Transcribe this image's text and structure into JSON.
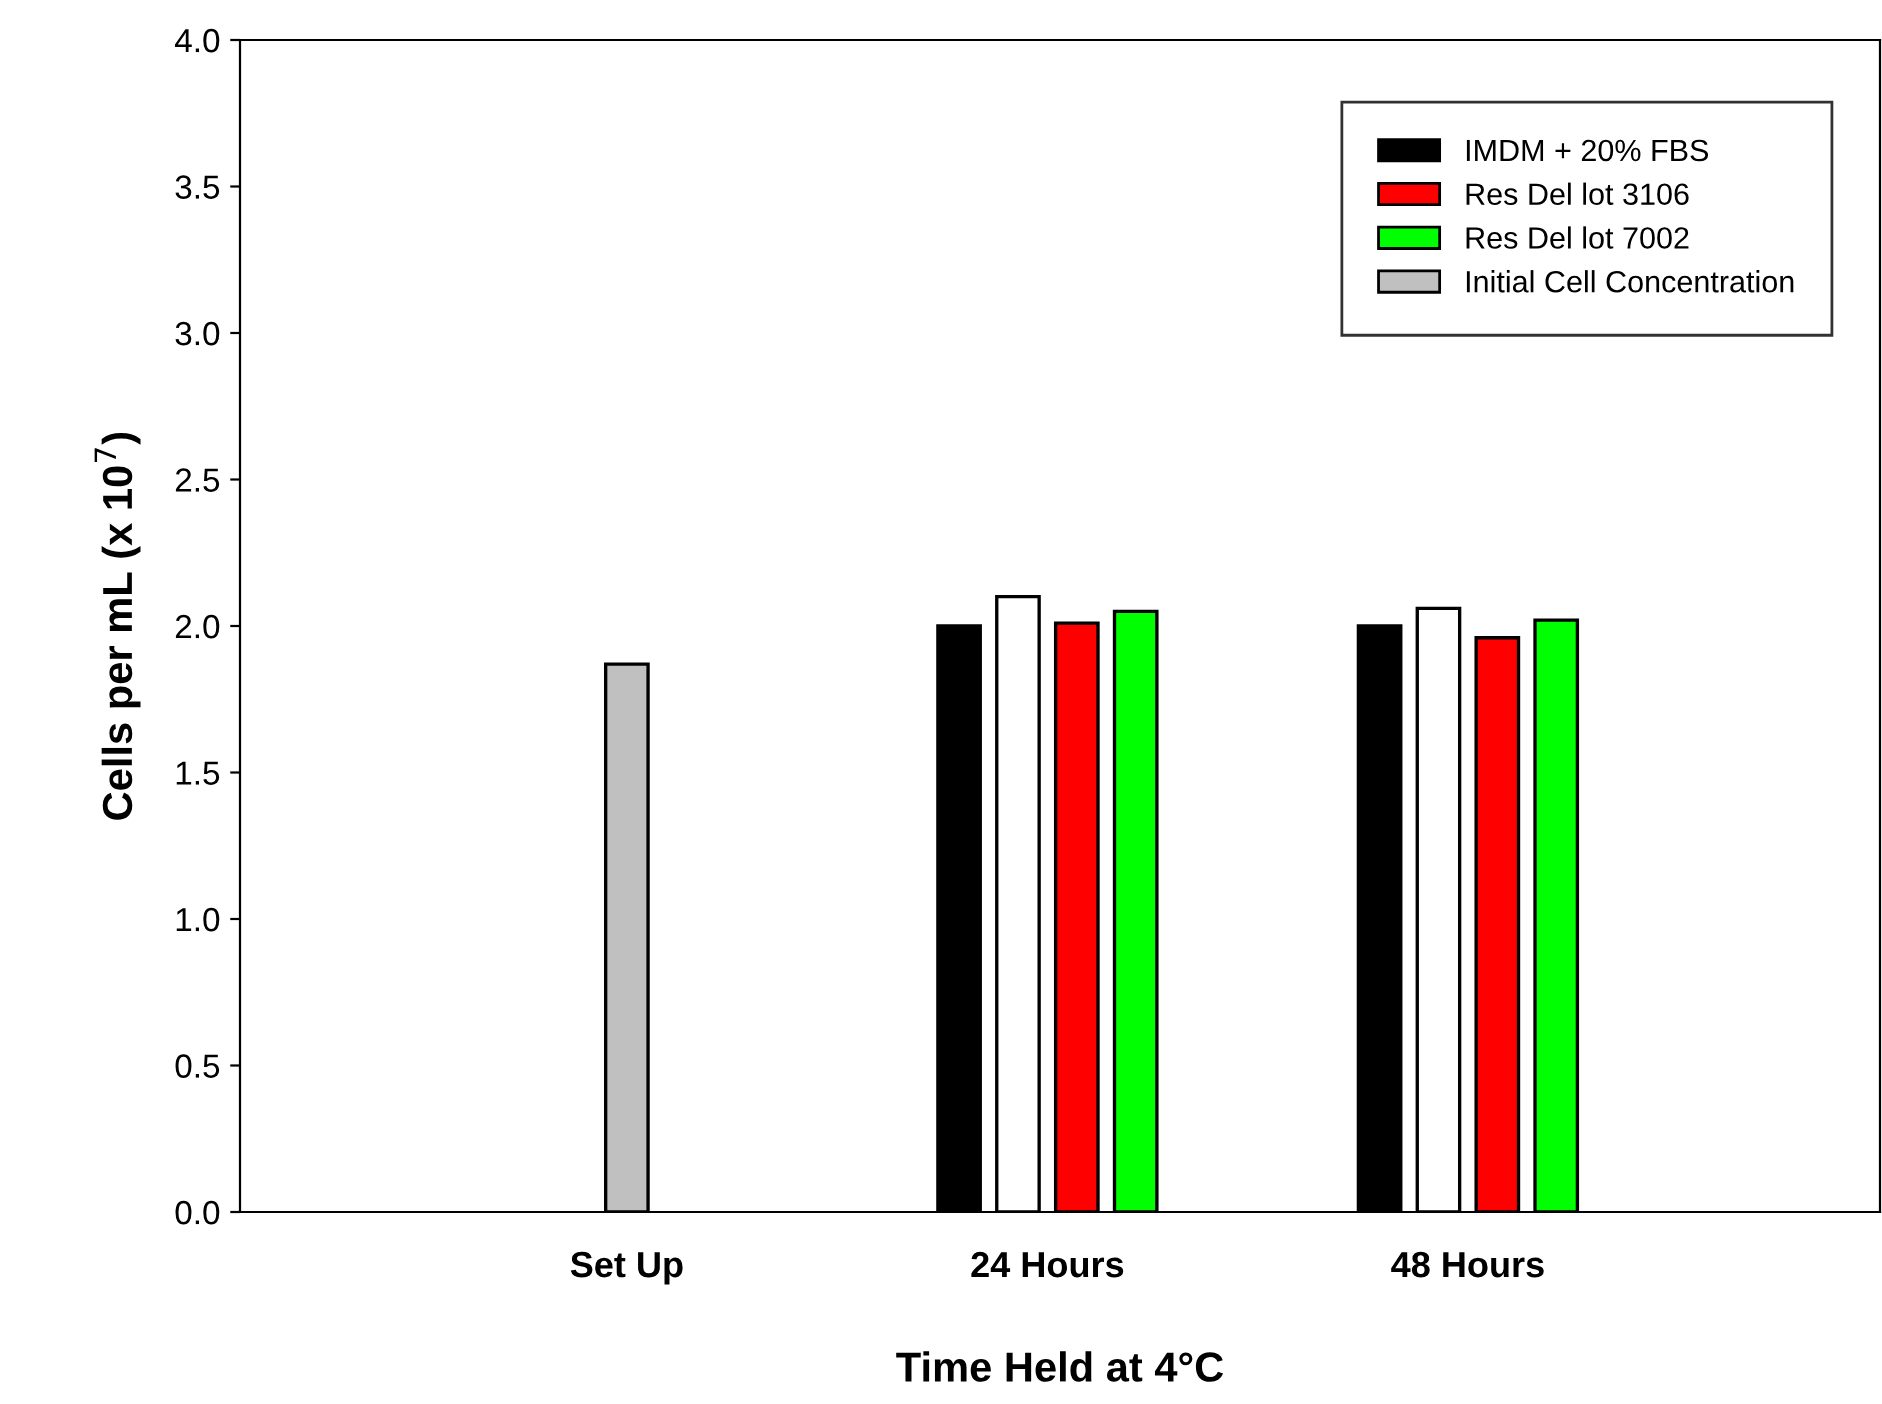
{
  "chart_data": {
    "type": "bar",
    "xlabel": "Time Held at 4°C",
    "ylabel": "Cells per mL (x 10$^{7}$)",
    "categories": [
      "Set Up",
      "24 Hours",
      "48 Hours"
    ],
    "series": [
      {
        "name": "IMDM + 20% FBS",
        "color": "#000000",
        "values": [
          null,
          2.0,
          2.0
        ]
      },
      {
        "color": "#ffffff",
        "values": [
          null,
          2.1,
          2.06
        ]
      },
      {
        "name": "Res Del lot 3106",
        "color": "#ff0000",
        "values": [
          null,
          2.01,
          1.96
        ]
      },
      {
        "name": "Res Del lot 7002",
        "color": "#00ff00",
        "values": [
          null,
          2.05,
          2.02
        ]
      },
      {
        "name": "Initial Cell Concentration",
        "color": "#c0c0c0",
        "values": [
          1.87,
          null,
          null
        ]
      }
    ],
    "ylim": [
      0,
      4.0
    ],
    "yticks": [
      {
        "value": 0,
        "label": "0.0"
      },
      {
        "value": 0.5,
        "label": "0.5"
      },
      {
        "value": 1,
        "label": "1.0"
      },
      {
        "value": 1.5,
        "label": "1.5"
      },
      {
        "value": 2,
        "label": "2.0"
      },
      {
        "value": 2.5,
        "label": "2.5"
      },
      {
        "value": 3,
        "label": "3.0"
      },
      {
        "value": 3.5,
        "label": "3.5"
      },
      {
        "value": 4,
        "label": "4.0"
      }
    ],
    "grid": false,
    "legend": "top right"
  }
}
